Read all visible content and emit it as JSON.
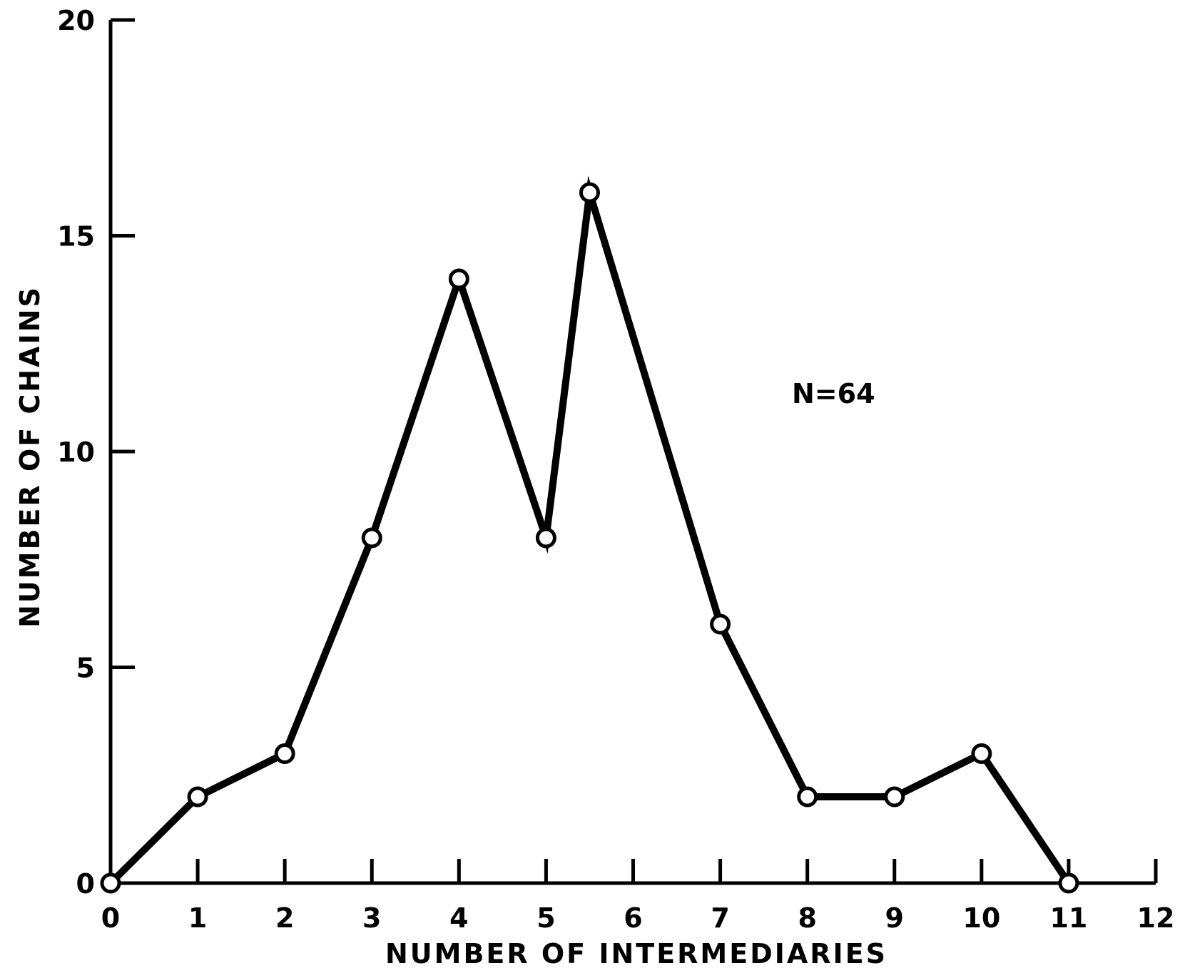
{
  "chart_data": {
    "type": "line",
    "xlabel": "NUMBER OF INTERMEDIARIES",
    "ylabel": "NUMBER OF CHAINS",
    "annotation": "N=64",
    "xlim": [
      0,
      12
    ],
    "ylim": [
      0,
      20
    ],
    "x_ticks": [
      0,
      1,
      2,
      3,
      4,
      5,
      6,
      7,
      8,
      9,
      10,
      11,
      12
    ],
    "x_tick_labels": [
      "0",
      "1",
      "2",
      "3",
      "4",
      "5",
      "6",
      "7",
      "8",
      "9",
      "10",
      "11",
      "12"
    ],
    "y_ticks": [
      0,
      5,
      10,
      15,
      20
    ],
    "y_tick_labels": [
      "0",
      "5",
      "10",
      "15",
      "20"
    ],
    "grid": false,
    "series": [
      {
        "points": [
          {
            "x": 0,
            "y": 0
          },
          {
            "x": 1,
            "y": 2
          },
          {
            "x": 2,
            "y": 3
          },
          {
            "x": 3,
            "y": 8
          },
          {
            "x": 4,
            "y": 14
          },
          {
            "x": 5,
            "y": 8
          },
          {
            "x": 5.5,
            "y": 16
          },
          {
            "x": 7,
            "y": 6
          },
          {
            "x": 8,
            "y": 2
          },
          {
            "x": 9,
            "y": 2
          },
          {
            "x": 10,
            "y": 3
          },
          {
            "x": 11,
            "y": 0
          }
        ]
      }
    ],
    "colors": {
      "line": "#000000",
      "marker_fill": "#ffffff",
      "axis": "#000000"
    }
  }
}
